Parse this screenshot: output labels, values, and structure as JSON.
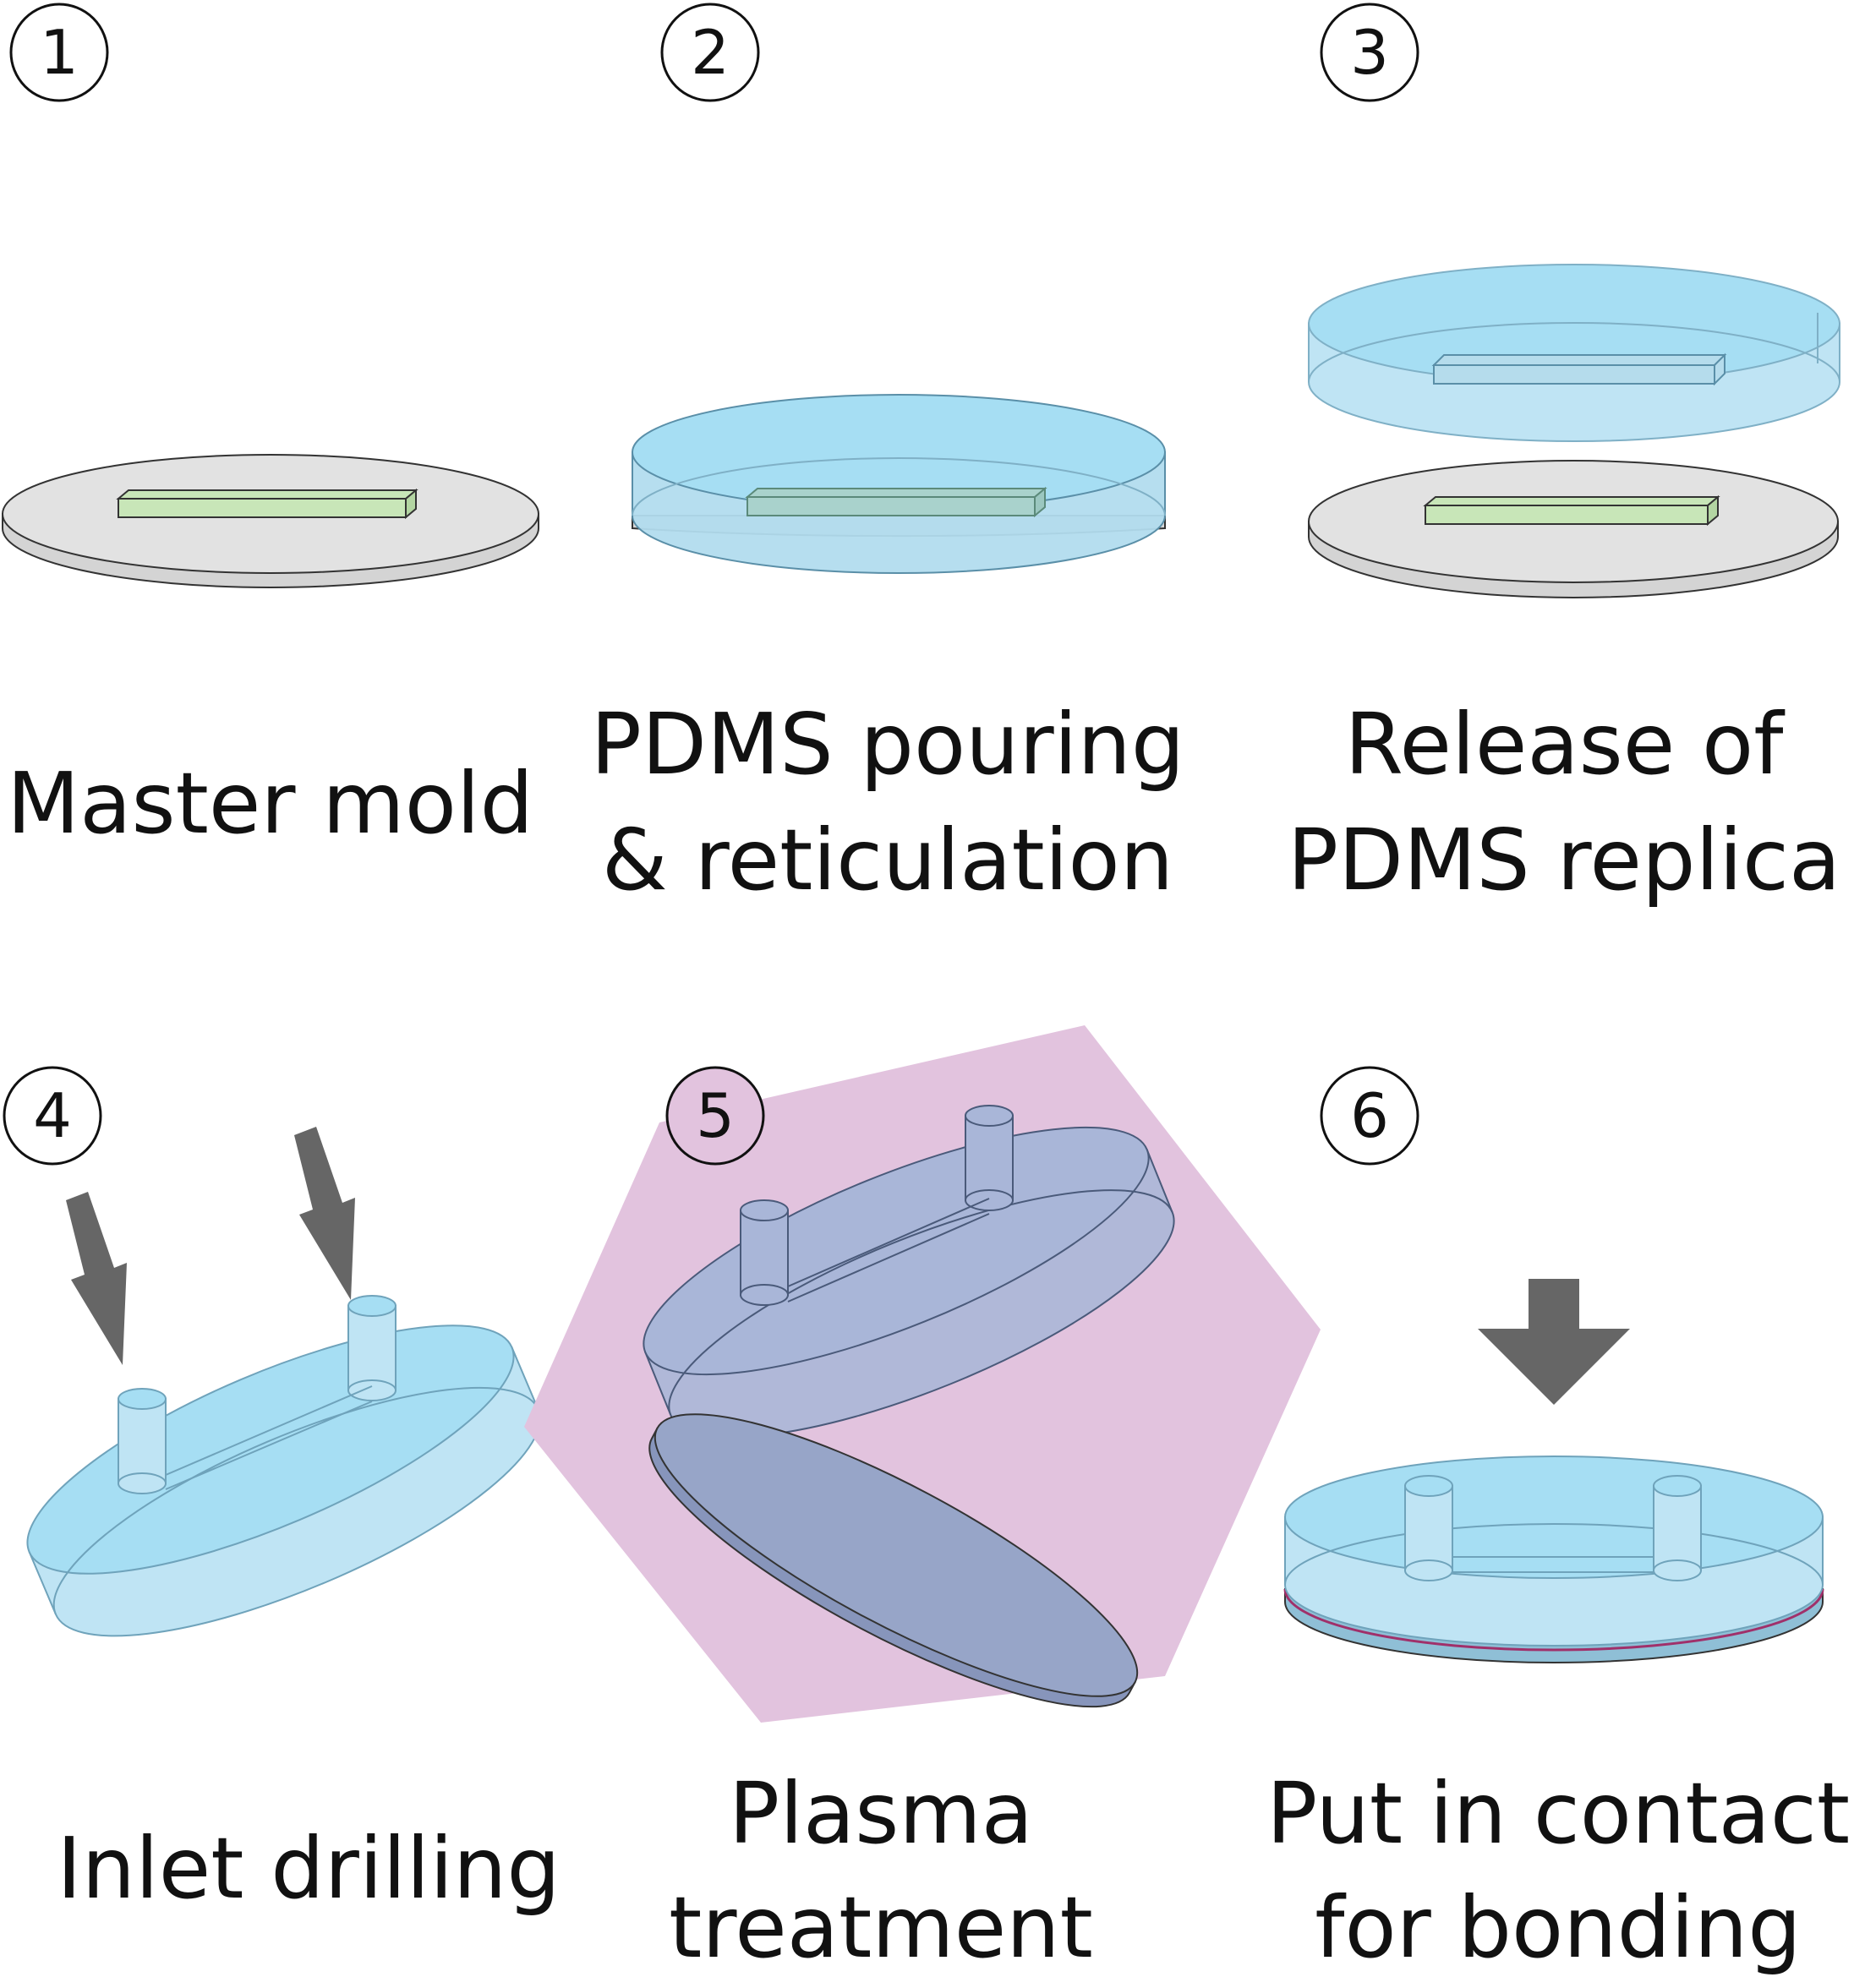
{
  "steps": [
    {
      "number": "1",
      "label_lines": [
        "Master mold"
      ]
    },
    {
      "number": "2",
      "label_lines": [
        "PDMS pouring",
        "& reticulation"
      ]
    },
    {
      "number": "3",
      "label_lines": [
        "Release of",
        "PDMS replica"
      ]
    },
    {
      "number": "4",
      "label_lines": [
        "Inlet drilling"
      ]
    },
    {
      "number": "5",
      "label_lines": [
        "Plasma",
        "treatment"
      ]
    },
    {
      "number": "6",
      "label_lines": [
        "Put in contact",
        "for bonding"
      ]
    }
  ],
  "colors": {
    "wafer": "#e2e2e2",
    "channel_mold": "#c8e6b8",
    "pdms": "#a8dcf0",
    "pdms_light": "#bfe4f4",
    "plasma": "#e2c3de",
    "treated_pdms": "#a9b6d8",
    "treated_glass": "#97a5c8",
    "arrow": "#666666"
  }
}
